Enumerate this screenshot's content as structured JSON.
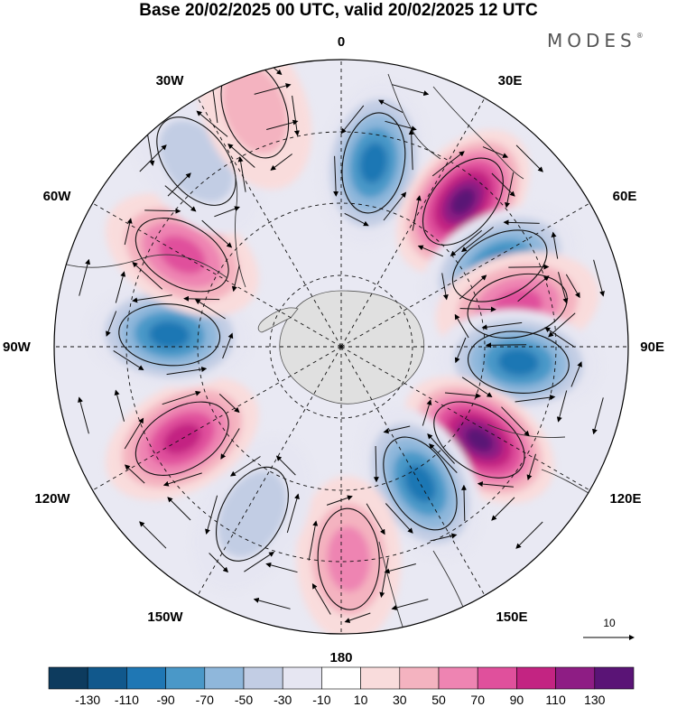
{
  "title": "Base 20/02/2025 00 UTC, valid 20/02/2025 12 UTC",
  "brand": {
    "name": "MODES",
    "mark": "®"
  },
  "longitude_labels": {
    "top": "0",
    "ne": "30E",
    "e60": "60E",
    "e90": "90E",
    "e120": "120E",
    "e150": "150E",
    "bottom": "180",
    "w150": "150W",
    "w120": "120W",
    "w90": "90W",
    "w60": "60W",
    "w30": "30W"
  },
  "vector_reference": {
    "label": "10"
  },
  "colorbar": {
    "labels": [
      "-130",
      "-110",
      "-90",
      "-70",
      "-50",
      "-30",
      "-10",
      "10",
      "30",
      "50",
      "70",
      "90",
      "110",
      "130"
    ],
    "colors": [
      "#0d3b5e",
      "#11588c",
      "#1f77b4",
      "#4a98c8",
      "#8fb7db",
      "#c2cde4",
      "#e6e6f2",
      "#ffffff",
      "#f9dcdc",
      "#f4b3c0",
      "#ee84b2",
      "#e0509c",
      "#c32482",
      "#8e1d84",
      "#5a1476"
    ]
  },
  "anomaly_cells": [
    {
      "lon": 10,
      "r": 0.65,
      "val": -100
    },
    {
      "lon": 40,
      "r": 0.66,
      "val": 130
    },
    {
      "lon": 63,
      "r": 0.62,
      "val": -90
    },
    {
      "lon": 77,
      "r": 0.63,
      "val": 70
    },
    {
      "lon": 95,
      "r": 0.62,
      "val": -100
    },
    {
      "lon": 124,
      "r": 0.58,
      "val": 130
    },
    {
      "lon": 150,
      "r": 0.55,
      "val": -100
    },
    {
      "lon": 178,
      "r": 0.74,
      "val": 60
    },
    {
      "lon": 208,
      "r": 0.66,
      "val": -40
    },
    {
      "lon": 240,
      "r": 0.64,
      "val": 90
    },
    {
      "lon": 274,
      "r": 0.6,
      "val": -100
    },
    {
      "lon": 300,
      "r": 0.64,
      "val": 80
    },
    {
      "lon": 322,
      "r": 0.82,
      "val": -30
    },
    {
      "lon": 340,
      "r": 0.88,
      "val": 40
    }
  ]
}
